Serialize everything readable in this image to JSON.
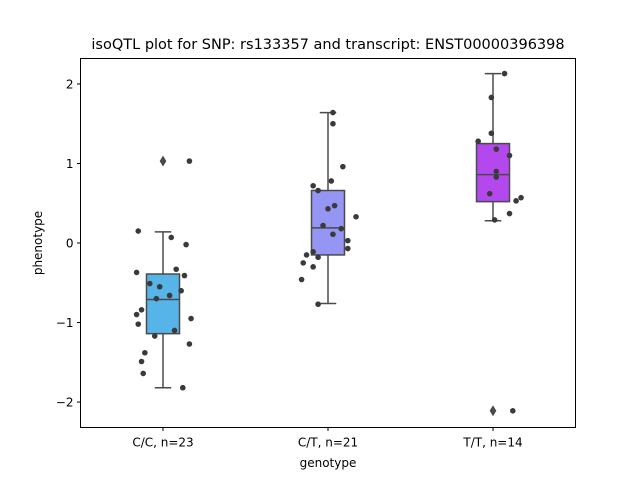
{
  "chart_data": {
    "type": "box",
    "title": "isoQTL plot for SNP: rs133357 and transcript: ENST00000396398",
    "xlabel": "genotype",
    "ylabel": "phenotype",
    "ylim": [
      -2.32,
      2.32
    ],
    "yticks": [
      -2,
      -1,
      0,
      1,
      2
    ],
    "ytick_labels": [
      "−2",
      "−1",
      "0",
      "1",
      "2"
    ],
    "grid": false,
    "groups": [
      {
        "label": "C/C, n=23",
        "color": "#56b4e9",
        "box": {
          "whisker_low": -1.82,
          "q1": -1.14,
          "median": -0.71,
          "q3": -0.39,
          "whisker_high": 0.14
        },
        "outliers": [
          1.03
        ],
        "points": [
          {
            "dx": -0.15,
            "y": 0.15
          },
          {
            "dx": 0.05,
            "y": 0.07
          },
          {
            "dx": 0.14,
            "y": -0.02
          },
          {
            "dx": -0.16,
            "y": -0.37
          },
          {
            "dx": 0.08,
            "y": -0.33
          },
          {
            "dx": 0.13,
            "y": -0.41
          },
          {
            "dx": -0.08,
            "y": -0.51
          },
          {
            "dx": -0.02,
            "y": -0.55
          },
          {
            "dx": 0.11,
            "y": -0.6
          },
          {
            "dx": 0.04,
            "y": -0.66
          },
          {
            "dx": -0.04,
            "y": -0.7
          },
          {
            "dx": -0.13,
            "y": -0.84
          },
          {
            "dx": -0.16,
            "y": -0.9
          },
          {
            "dx": 0.17,
            "y": -0.95
          },
          {
            "dx": -0.15,
            "y": -1.02
          },
          {
            "dx": 0.07,
            "y": -1.1
          },
          {
            "dx": -0.05,
            "y": -1.17
          },
          {
            "dx": 0.16,
            "y": -1.27
          },
          {
            "dx": -0.11,
            "y": -1.38
          },
          {
            "dx": -0.13,
            "y": -1.49
          },
          {
            "dx": -0.12,
            "y": -1.64
          },
          {
            "dx": 0.12,
            "y": -1.82
          },
          {
            "dx": 0.16,
            "y": 1.03
          }
        ]
      },
      {
        "label": "C/T, n=21",
        "color": "#9595f3",
        "box": {
          "whisker_low": -0.76,
          "q1": -0.15,
          "median": 0.19,
          "q3": 0.66,
          "whisker_high": 1.64
        },
        "outliers": [],
        "points": [
          {
            "dx": 0.03,
            "y": 1.64
          },
          {
            "dx": 0.03,
            "y": 1.5
          },
          {
            "dx": 0.09,
            "y": 0.96
          },
          {
            "dx": 0.02,
            "y": 0.78
          },
          {
            "dx": -0.09,
            "y": 0.72
          },
          {
            "dx": -0.06,
            "y": 0.66
          },
          {
            "dx": 0.04,
            "y": 0.47
          },
          {
            "dx": 0.0,
            "y": 0.43
          },
          {
            "dx": 0.17,
            "y": 0.33
          },
          {
            "dx": -0.03,
            "y": 0.22
          },
          {
            "dx": 0.08,
            "y": 0.18
          },
          {
            "dx": 0.03,
            "y": 0.11
          },
          {
            "dx": 0.12,
            "y": 0.03
          },
          {
            "dx": 0.12,
            "y": -0.07
          },
          {
            "dx": -0.09,
            "y": -0.11
          },
          {
            "dx": -0.13,
            "y": -0.15
          },
          {
            "dx": -0.06,
            "y": -0.18
          },
          {
            "dx": -0.15,
            "y": -0.25
          },
          {
            "dx": -0.09,
            "y": -0.3
          },
          {
            "dx": -0.16,
            "y": -0.46
          },
          {
            "dx": -0.06,
            "y": -0.77
          }
        ]
      },
      {
        "label": "T/T, n=14",
        "color": "#b447ee",
        "box": {
          "whisker_low": 0.28,
          "q1": 0.52,
          "median": 0.86,
          "q3": 1.25,
          "whisker_high": 2.13
        },
        "outliers": [
          -2.11
        ],
        "points": [
          {
            "dx": 0.07,
            "y": 2.13
          },
          {
            "dx": -0.01,
            "y": 1.83
          },
          {
            "dx": -0.01,
            "y": 1.38
          },
          {
            "dx": -0.09,
            "y": 1.28
          },
          {
            "dx": 0.02,
            "y": 1.18
          },
          {
            "dx": 0.1,
            "y": 1.1
          },
          {
            "dx": 0.02,
            "y": 0.9
          },
          {
            "dx": 0.02,
            "y": 0.83
          },
          {
            "dx": 0.17,
            "y": 0.57
          },
          {
            "dx": 0.14,
            "y": 0.53
          },
          {
            "dx": -0.02,
            "y": 0.62
          },
          {
            "dx": 0.1,
            "y": 0.37
          },
          {
            "dx": 0.01,
            "y": 0.29
          },
          {
            "dx": 0.12,
            "y": -2.11
          }
        ]
      }
    ]
  }
}
